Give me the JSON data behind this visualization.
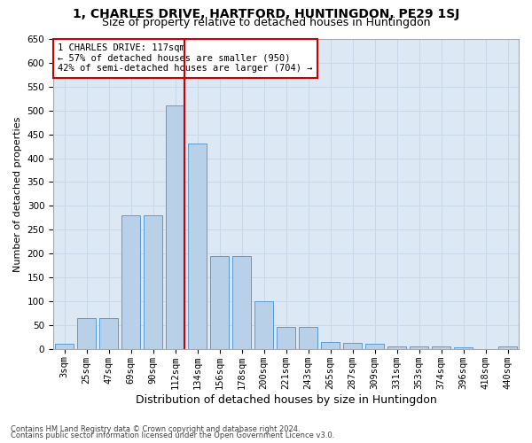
{
  "title": "1, CHARLES DRIVE, HARTFORD, HUNTINGDON, PE29 1SJ",
  "subtitle": "Size of property relative to detached houses in Huntingdon",
  "xlabel": "Distribution of detached houses by size in Huntingdon",
  "ylabel": "Number of detached properties",
  "footer_line1": "Contains HM Land Registry data © Crown copyright and database right 2024.",
  "footer_line2": "Contains public sector information licensed under the Open Government Licence v3.0.",
  "bar_labels": [
    "3sqm",
    "25sqm",
    "47sqm",
    "69sqm",
    "90sqm",
    "112sqm",
    "134sqm",
    "156sqm",
    "178sqm",
    "200sqm",
    "221sqm",
    "243sqm",
    "265sqm",
    "287sqm",
    "309sqm",
    "331sqm",
    "353sqm",
    "374sqm",
    "396sqm",
    "418sqm",
    "440sqm"
  ],
  "bar_values": [
    10,
    65,
    65,
    280,
    280,
    510,
    430,
    195,
    195,
    100,
    47,
    47,
    15,
    12,
    10,
    6,
    5,
    5,
    4,
    0,
    5
  ],
  "bar_color": "#b8d0e8",
  "bar_edge_color": "#5b9bd5",
  "annotation_text": "1 CHARLES DRIVE: 117sqm\n← 57% of detached houses are smaller (950)\n42% of semi-detached houses are larger (704) →",
  "annotation_box_color": "#ffffff",
  "annotation_box_edge_color": "#cc0000",
  "vline_color": "#cc0000",
  "vline_index": 5,
  "ylim": [
    0,
    650
  ],
  "yticks": [
    0,
    50,
    100,
    150,
    200,
    250,
    300,
    350,
    400,
    450,
    500,
    550,
    600,
    650
  ],
  "grid_color": "#c8d8e8",
  "bg_color": "#dce8f4",
  "title_fontsize": 10,
  "subtitle_fontsize": 9,
  "ylabel_fontsize": 8,
  "xlabel_fontsize": 9,
  "tick_fontsize": 7.5,
  "annotation_fontsize": 7.5,
  "footer_fontsize": 6
}
